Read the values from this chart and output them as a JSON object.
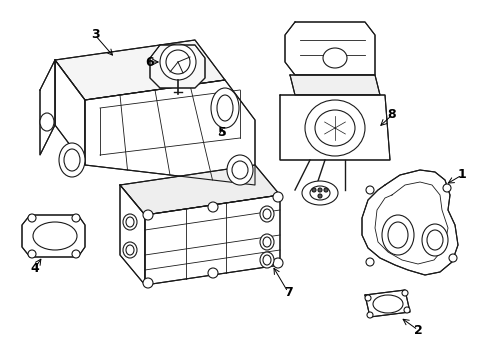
{
  "background_color": "#ffffff",
  "line_color": "#1a1a1a",
  "line_width": 0.8,
  "label_fontsize": 9,
  "fig_width": 4.9,
  "fig_height": 3.6,
  "dpi": 100
}
